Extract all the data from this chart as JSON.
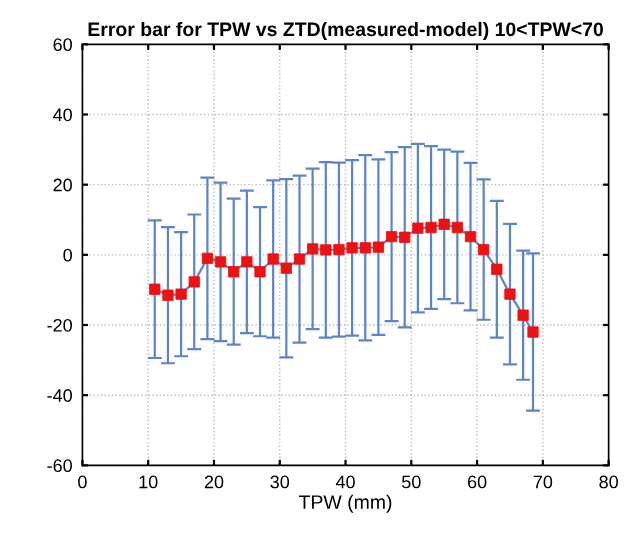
{
  "chart_data": {
    "type": "line",
    "title": "Error bar for TPW vs ZTD(measured-model) 10<TPW<70",
    "xlabel": "TPW (mm)",
    "xlim": [
      0,
      80
    ],
    "xticks": [
      0,
      10,
      20,
      30,
      40,
      50,
      60,
      70,
      80
    ],
    "ylim": [
      -60,
      60
    ],
    "yticks": [
      -60,
      -40,
      -20,
      0,
      20,
      40,
      60
    ],
    "grid": true,
    "marker": "square",
    "line_style": "solid",
    "series": [
      {
        "color": "#5b84c9",
        "colors": [
          "#ee1111",
          "#ee1111",
          "#ee1111",
          "#ee1111",
          "#ee1111",
          "#ee1111",
          "#ee1111",
          "#ee1111",
          "#ee1111",
          "#ee1111",
          "#ee1111",
          "#ee1111",
          "#ee1111",
          "#ee1111",
          "#ee1111",
          "#ee1111",
          "#ee1111",
          "#ee1111",
          "#ee1111",
          "#ee1111",
          "#ee1111",
          "#ee1111",
          "#ee1111",
          "#ee1111",
          "#ee1111",
          "#ee1111",
          "#ee1111",
          "#ee1111",
          "#ee1111",
          "#ee1111"
        ],
        "x": [
          11,
          13,
          15,
          17,
          19,
          21,
          23,
          25,
          27,
          29,
          31,
          33,
          35,
          37,
          39,
          41,
          43,
          45,
          47,
          49,
          51,
          53,
          55,
          57,
          59,
          61,
          63,
          65,
          67,
          68.5
        ],
        "values": [
          -9.8,
          -11.5,
          -11.2,
          -7.7,
          -1,
          -2,
          -4.8,
          -2,
          -4.8,
          -1.2,
          -3.8,
          -1.2,
          1.7,
          1.4,
          1.5,
          2,
          2,
          2.2,
          5.2,
          5,
          7.6,
          7.8,
          8.7,
          7.8,
          5.2,
          1.5,
          -4.1,
          -11.2,
          -17.2,
          -22
        ],
        "errors": [
          19.6,
          19.4,
          17.7,
          19.2,
          23,
          22.6,
          20.8,
          20.3,
          18.4,
          22.4,
          25.4,
          23.8,
          22.9,
          25,
          24.8,
          25,
          26.4,
          25,
          24.1,
          25.7,
          24,
          23.2,
          21.3,
          21.6,
          21,
          20,
          19.5,
          20,
          18.4,
          22.4
        ]
      }
    ]
  }
}
